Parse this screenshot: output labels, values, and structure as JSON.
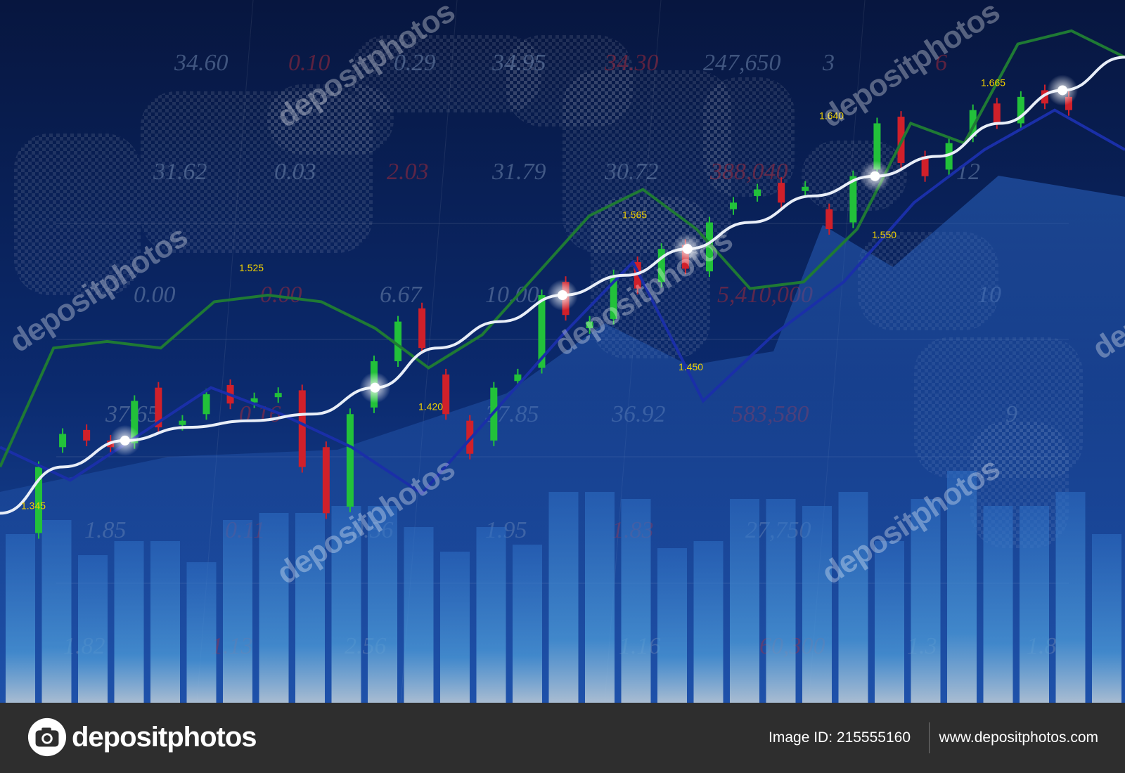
{
  "chart_data": {
    "type": "candlestick",
    "title": "",
    "xlabel": "",
    "ylabel": "",
    "grid": true,
    "candles": [
      {
        "open": 1.33,
        "close": 1.38,
        "color": "green"
      },
      {
        "open": 1.395,
        "close": 1.405,
        "color": "green"
      },
      {
        "open": 1.408,
        "close": 1.4,
        "color": "red"
      },
      {
        "open": 1.4,
        "close": 1.395,
        "color": "red"
      },
      {
        "open": 1.398,
        "close": 1.43,
        "color": "green"
      },
      {
        "open": 1.44,
        "close": 1.41,
        "color": "red"
      },
      {
        "open": 1.415,
        "close": 1.412,
        "color": "green"
      },
      {
        "open": 1.42,
        "close": 1.435,
        "color": "green"
      },
      {
        "open": 1.442,
        "close": 1.428,
        "color": "red"
      },
      {
        "open": 1.43,
        "close": 1.432,
        "color": "green"
      },
      {
        "open": 1.435,
        "close": 1.436,
        "color": "green"
      },
      {
        "open": 1.438,
        "close": 1.38,
        "color": "red"
      },
      {
        "open": 1.395,
        "close": 1.345,
        "color": "red"
      },
      {
        "open": 1.35,
        "close": 1.42,
        "color": "green"
      },
      {
        "open": 1.425,
        "close": 1.46,
        "color": "green"
      },
      {
        "open": 1.46,
        "close": 1.49,
        "color": "green"
      },
      {
        "open": 1.5,
        "close": 1.47,
        "color": "red"
      },
      {
        "open": 1.45,
        "close": 1.42,
        "color": "red"
      },
      {
        "open": 1.415,
        "close": 1.39,
        "color": "red"
      },
      {
        "open": 1.4,
        "close": 1.44,
        "color": "green"
      },
      {
        "open": 1.445,
        "close": 1.45,
        "color": "green"
      },
      {
        "open": 1.455,
        "close": 1.51,
        "color": "green"
      },
      {
        "open": 1.52,
        "close": 1.495,
        "color": "red"
      },
      {
        "open": 1.485,
        "close": 1.49,
        "color": "green"
      },
      {
        "open": 1.492,
        "close": 1.525,
        "color": "green"
      },
      {
        "open": 1.535,
        "close": 1.515,
        "color": "red"
      },
      {
        "open": 1.52,
        "close": 1.545,
        "color": "green"
      },
      {
        "open": 1.548,
        "close": 1.53,
        "color": "red"
      },
      {
        "open": 1.528,
        "close": 1.565,
        "color": "green"
      },
      {
        "open": 1.575,
        "close": 1.58,
        "color": "green"
      },
      {
        "open": 1.585,
        "close": 1.59,
        "color": "green"
      },
      {
        "open": 1.595,
        "close": 1.58,
        "color": "red"
      },
      {
        "open": 1.59,
        "close": 1.592,
        "color": "green"
      },
      {
        "open": 1.575,
        "close": 1.56,
        "color": "red"
      },
      {
        "open": 1.565,
        "close": 1.6,
        "color": "green"
      },
      {
        "open": 1.605,
        "close": 1.64,
        "color": "green"
      },
      {
        "open": 1.645,
        "close": 1.61,
        "color": "red"
      },
      {
        "open": 1.615,
        "close": 1.6,
        "color": "red"
      },
      {
        "open": 1.605,
        "close": 1.625,
        "color": "green"
      },
      {
        "open": 1.63,
        "close": 1.65,
        "color": "green"
      },
      {
        "open": 1.655,
        "close": 1.64,
        "color": "red"
      },
      {
        "open": 1.64,
        "close": 1.66,
        "color": "green"
      },
      {
        "open": 1.665,
        "close": 1.655,
        "color": "red"
      },
      {
        "open": 1.66,
        "close": 1.65,
        "color": "red"
      }
    ],
    "moving_average": [
      1.345,
      1.38,
      1.4,
      1.41,
      1.415,
      1.42,
      1.44,
      1.47,
      1.49,
      1.51,
      1.525,
      1.545,
      1.565,
      1.585,
      1.6,
      1.615,
      1.64,
      1.665,
      1.69
    ],
    "green_line": [
      1.38,
      1.47,
      1.475,
      1.47,
      1.505,
      1.51,
      1.505,
      1.485,
      1.455,
      1.48,
      1.525,
      1.57,
      1.59,
      1.56,
      1.515,
      1.52,
      1.56,
      1.64,
      1.625,
      1.7,
      1.71,
      1.69
    ],
    "blue_line": [
      1.395,
      1.37,
      1.405,
      1.44,
      1.42,
      1.395,
      1.36,
      1.42,
      1.48,
      1.535,
      1.43,
      1.48,
      1.52,
      1.58,
      1.62,
      1.65,
      1.62
    ],
    "volume_bars": [
      240,
      260,
      210,
      230,
      230,
      200,
      260,
      270,
      270,
      280,
      280,
      250,
      215,
      250,
      225,
      300,
      300,
      290,
      220,
      230,
      290,
      290,
      280,
      300,
      230,
      290,
      330,
      280,
      280,
      300,
      240
    ],
    "price_labels": [
      "1.345",
      "1.420",
      "1.450",
      "1.525",
      "1.550",
      "1.565",
      "1.640",
      "1.665"
    ],
    "background_numbers": [
      "34.60",
      "0.10",
      "0.29",
      "34.95",
      "34.30",
      "247,650",
      "3",
      "6",
      "31.62",
      "0.03",
      "2.03",
      "31.79",
      "30.72",
      "388,040",
      "12",
      "0.00",
      "0.00",
      "6.67",
      "10.00",
      "5,410,000",
      "10",
      "37.65",
      "0.16",
      "37.85",
      "36.92",
      "583,580",
      "9",
      "1.85",
      "0.11",
      "0.56",
      "1.95",
      "1.83",
      "27,750",
      "1.82",
      "1.13",
      "2.56",
      "1.16",
      "60,300",
      "1.3",
      "1.8"
    ],
    "colors": {
      "background_top": "#0a1848",
      "background_bottom": "#1a3f9a",
      "bull": "#22c13a",
      "bear": "#d0202a",
      "ma": "#e8eef8",
      "green_line": "#1f7a34",
      "blue_line": "#1a2fa8",
      "label": "#f0d000"
    }
  },
  "watermark": {
    "text": "depositphotos"
  },
  "footer": {
    "brand": "depositphotos",
    "image_id": "Image ID: 215555160",
    "site": "www.depositphotos.com",
    "logo_icon": "camera-icon"
  }
}
